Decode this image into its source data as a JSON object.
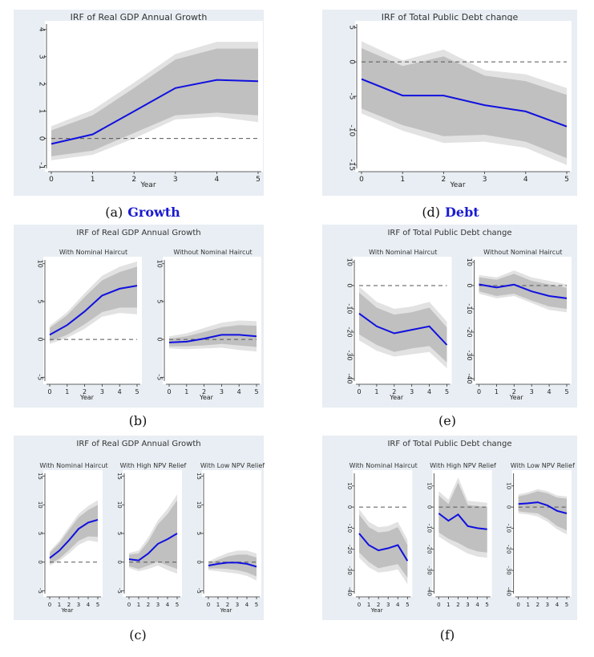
{
  "chart_data": [
    {
      "id": "a",
      "type": "line",
      "caption_label": "(a)",
      "caption_word": "Growth",
      "title": "IRF of Real GDP Annual Growth",
      "subplots": [
        {
          "subtitle": "",
          "xlabel": "Year",
          "x": [
            0,
            1,
            2,
            3,
            4,
            5
          ],
          "xticks": [
            0,
            1,
            2,
            3,
            4,
            5
          ],
          "ylim": [
            -1.1,
            4.2
          ],
          "yticks": [
            -1,
            0,
            1,
            2,
            3,
            4
          ],
          "series": [
            {
              "values": [
                -0.2,
                0.15,
                1.0,
                1.85,
                2.15,
                2.1
              ],
              "ci_inner_lower": [
                -0.65,
                -0.45,
                0.2,
                0.85,
                0.95,
                0.85
              ],
              "ci_inner_upper": [
                0.3,
                0.85,
                1.85,
                2.9,
                3.3,
                3.3
              ],
              "ci_outer_lower": [
                -0.8,
                -0.6,
                0.0,
                0.7,
                0.8,
                0.6
              ],
              "ci_outer_upper": [
                0.45,
                1.05,
                2.05,
                3.1,
                3.55,
                3.55
              ]
            }
          ]
        }
      ]
    },
    {
      "id": "d",
      "type": "line",
      "caption_label": "(d)",
      "caption_word": "Debt",
      "title": "IRF of Total Public Debt change",
      "subplots": [
        {
          "subtitle": "",
          "xlabel": "Year",
          "x": [
            0,
            1,
            2,
            3,
            4,
            5
          ],
          "xticks": [
            0,
            1,
            2,
            3,
            4,
            5
          ],
          "ylim": [
            -15.5,
            5.5
          ],
          "yticks": [
            5,
            0,
            -5,
            -10,
            -15
          ],
          "series": [
            {
              "values": [
                -2.5,
                -4.9,
                -4.9,
                -6.3,
                -7.2,
                -9.4
              ],
              "ci_inner_lower": [
                -6.8,
                -9.2,
                -10.8,
                -10.6,
                -11.6,
                -14.0
              ],
              "ci_inner_upper": [
                2.0,
                -0.6,
                0.8,
                -2.0,
                -2.8,
                -4.8
              ],
              "ci_outer_lower": [
                -7.5,
                -10.0,
                -11.8,
                -11.6,
                -12.5,
                -15.0
              ],
              "ci_outer_upper": [
                3.0,
                0.2,
                1.8,
                -1.2,
                -1.8,
                -3.8
              ]
            }
          ]
        }
      ]
    },
    {
      "id": "b",
      "type": "line",
      "caption_label": "(b)",
      "caption_word": "",
      "title": "IRF of Real GDP Annual Growth",
      "subplots": [
        {
          "subtitle": "With Nominal Haircut",
          "xlabel": "Year",
          "x": [
            0,
            1,
            2,
            3,
            4,
            5
          ],
          "xticks": [
            0,
            1,
            2,
            3,
            4,
            5
          ],
          "ylim": [
            -5.5,
            10.5
          ],
          "yticks": [
            10,
            5,
            0,
            -5
          ],
          "series": [
            {
              "values": [
                0.6,
                1.9,
                3.7,
                5.8,
                6.7,
                7.1
              ],
              "ci_inner_lower": [
                -0.3,
                0.6,
                2.0,
                3.6,
                4.2,
                4.2
              ],
              "ci_inner_upper": [
                1.5,
                3.2,
                5.6,
                7.8,
                8.9,
                9.6
              ],
              "ci_outer_lower": [
                -0.6,
                0.2,
                1.4,
                3.0,
                3.5,
                3.3
              ],
              "ci_outer_upper": [
                1.8,
                3.6,
                6.1,
                8.4,
                9.6,
                10.3
              ]
            }
          ]
        },
        {
          "subtitle": "Without Nominal Haircut",
          "xlabel": "Year",
          "x": [
            0,
            1,
            2,
            3,
            4,
            5
          ],
          "xticks": [
            0,
            1,
            2,
            3,
            4,
            5
          ],
          "ylim": [
            -5.5,
            10.5
          ],
          "yticks": [
            10,
            5,
            0,
            -5
          ],
          "series": [
            {
              "values": [
                -0.4,
                -0.3,
                0.1,
                0.6,
                0.6,
                0.4
              ],
              "ci_inner_lower": [
                -0.9,
                -0.9,
                -0.8,
                -0.6,
                -0.8,
                -1.0
              ],
              "ci_inner_upper": [
                0.1,
                0.4,
                1.0,
                1.6,
                1.9,
                1.8
              ],
              "ci_outer_lower": [
                -1.2,
                -1.3,
                -1.2,
                -1.1,
                -1.4,
                -1.6
              ],
              "ci_outer_upper": [
                0.4,
                0.8,
                1.5,
                2.2,
                2.5,
                2.4
              ]
            }
          ]
        }
      ]
    },
    {
      "id": "e",
      "type": "line",
      "caption_label": "(e)",
      "caption_word": "",
      "title": "IRF of Total Public Debt change",
      "subplots": [
        {
          "subtitle": "With Nominal Haircut",
          "xlabel": "Year",
          "x": [
            0,
            1,
            2,
            3,
            4,
            5
          ],
          "xticks": [
            0,
            1,
            2,
            3,
            4,
            5
          ],
          "ylim": [
            -41,
            11
          ],
          "yticks": [
            10,
            0,
            -10,
            -20,
            -30,
            -40
          ],
          "series": [
            {
              "values": [
                -12.0,
                -17.5,
                -20.5,
                -19.0,
                -17.5,
                -25.5
              ],
              "ci_inner_lower": [
                -21.0,
                -25.5,
                -28.5,
                -27.0,
                -26.0,
                -33.0
              ],
              "ci_inner_upper": [
                -3.0,
                -9.5,
                -12.5,
                -11.5,
                -9.5,
                -18.0
              ],
              "ci_outer_lower": [
                -23.5,
                -28.0,
                -30.5,
                -29.5,
                -28.5,
                -35.5
              ],
              "ci_outer_upper": [
                -0.5,
                -7.0,
                -10.0,
                -9.0,
                -7.0,
                -15.5
              ]
            }
          ]
        },
        {
          "subtitle": "Without Nominal Haircut",
          "xlabel": "Year",
          "x": [
            0,
            1,
            2,
            3,
            4,
            5
          ],
          "xticks": [
            0,
            1,
            2,
            3,
            4,
            5
          ],
          "ylim": [
            -41,
            11
          ],
          "yticks": [
            10,
            0,
            -10,
            -20,
            -30,
            -40
          ],
          "series": [
            {
              "values": [
                0.5,
                -0.8,
                0.4,
                -2.5,
                -4.5,
                -5.5
              ],
              "ci_inner_lower": [
                -2.5,
                -4.5,
                -3.5,
                -6.5,
                -9.0,
                -10.0
              ],
              "ci_inner_upper": [
                3.5,
                2.5,
                5.0,
                2.0,
                0.5,
                -1.0
              ],
              "ci_outer_lower": [
                -3.5,
                -5.5,
                -4.5,
                -7.5,
                -10.5,
                -11.5
              ],
              "ci_outer_upper": [
                4.5,
                3.5,
                6.5,
                3.5,
                2.0,
                0.5
              ]
            }
          ]
        }
      ]
    },
    {
      "id": "c",
      "type": "line",
      "caption_label": "(c)",
      "caption_word": "",
      "title": "IRF of Real GDP Annual Growth",
      "subplots": [
        {
          "subtitle": "With Nominal Haircut",
          "xlabel": "Year",
          "x": [
            0,
            1,
            2,
            3,
            4,
            5
          ],
          "xticks": [
            0,
            1,
            2,
            3,
            4,
            5
          ],
          "ylim": [
            -5.5,
            15.5
          ],
          "yticks": [
            15,
            10,
            5,
            0,
            -5
          ],
          "series": [
            {
              "values": [
                0.7,
                2.0,
                3.8,
                5.8,
                6.9,
                7.4
              ],
              "ci_inner_lower": [
                -0.3,
                0.6,
                2.1,
                3.7,
                4.5,
                4.4
              ],
              "ci_inner_upper": [
                1.6,
                3.3,
                5.6,
                7.8,
                9.1,
                10.0
              ],
              "ci_outer_lower": [
                -0.6,
                0.2,
                1.5,
                3.0,
                3.8,
                3.5
              ],
              "ci_outer_upper": [
                1.9,
                3.7,
                6.1,
                8.4,
                9.8,
                10.8
              ]
            }
          ]
        },
        {
          "subtitle": "With High NPV Relief",
          "xlabel": "",
          "x": [
            0,
            1,
            2,
            3,
            4,
            5
          ],
          "xticks": [
            0,
            1,
            2,
            3,
            4,
            5
          ],
          "ylim": [
            -5.5,
            15.5
          ],
          "yticks": [
            15,
            10,
            5,
            0,
            -5
          ],
          "series": [
            {
              "values": [
                0.5,
                0.3,
                1.5,
                3.2,
                4.0,
                5.0
              ],
              "ci_inner_lower": [
                -0.7,
                -1.2,
                -0.6,
                0.1,
                -0.6,
                -1.2
              ],
              "ci_inner_upper": [
                1.3,
                1.5,
                3.6,
                6.6,
                8.4,
                10.8
              ],
              "ci_outer_lower": [
                -1.0,
                -1.6,
                -1.2,
                -0.6,
                -1.4,
                -2.0
              ],
              "ci_outer_upper": [
                1.6,
                2.0,
                4.3,
                7.3,
                9.3,
                11.8
              ]
            }
          ]
        },
        {
          "subtitle": "With Low NPV Relief",
          "xlabel": "Year",
          "x": [
            0,
            1,
            2,
            3,
            4,
            5
          ],
          "xticks": [
            0,
            1,
            2,
            3,
            4,
            5
          ],
          "ylim": [
            -5.5,
            15.5
          ],
          "yticks": [
            15,
            10,
            5,
            0,
            -5
          ],
          "series": [
            {
              "values": [
                -0.6,
                -0.3,
                -0.1,
                -0.1,
                -0.3,
                -0.8
              ],
              "ci_inner_lower": [
                -1.1,
                -1.1,
                -1.2,
                -1.4,
                -1.8,
                -2.5
              ],
              "ci_inner_upper": [
                -0.2,
                0.4,
                1.0,
                1.3,
                1.3,
                0.8
              ],
              "ci_outer_lower": [
                -1.4,
                -1.6,
                -1.8,
                -2.0,
                -2.4,
                -3.2
              ],
              "ci_outer_upper": [
                0.1,
                0.9,
                1.6,
                2.0,
                2.0,
                1.5
              ]
            }
          ]
        }
      ]
    },
    {
      "id": "f",
      "type": "line",
      "caption_label": "(f)",
      "caption_word": "",
      "title": "IRF of Total Public Debt change",
      "subplots": [
        {
          "subtitle": "With Nominal Haircut",
          "xlabel": "Year",
          "x": [
            0,
            1,
            2,
            3,
            4,
            5
          ],
          "xticks": [
            0,
            1,
            2,
            3,
            4,
            5
          ],
          "ylim": [
            -41,
            16
          ],
          "yticks": [
            10,
            0,
            -10,
            -20,
            -30,
            -40
          ],
          "series": [
            {
              "values": [
                -12.5,
                -18.0,
                -20.5,
                -19.5,
                -18.0,
                -25.5
              ],
              "ci_inner_lower": [
                -21.5,
                -26.0,
                -29.0,
                -28.0,
                -27.0,
                -33.5
              ],
              "ci_inner_upper": [
                -3.5,
                -9.5,
                -12.0,
                -11.5,
                -9.5,
                -18.0
              ],
              "ci_outer_lower": [
                -24.0,
                -28.5,
                -31.0,
                -30.5,
                -29.5,
                -36.5
              ],
              "ci_outer_upper": [
                -1.0,
                -7.0,
                -9.5,
                -9.0,
                -7.0,
                -15.5
              ]
            }
          ]
        },
        {
          "subtitle": "With High NPV Relief",
          "xlabel": "",
          "x": [
            0,
            1,
            2,
            3,
            4,
            5
          ],
          "xticks": [
            0,
            1,
            2,
            3,
            4,
            5
          ],
          "ylim": [
            -41,
            16
          ],
          "yticks": [
            10,
            0,
            -10,
            -20,
            -30,
            -40
          ],
          "series": [
            {
              "values": [
                -3.0,
                -6.5,
                -3.5,
                -9.0,
                -10.0,
                -10.5
              ],
              "ci_inner_lower": [
                -12.0,
                -15.0,
                -17.0,
                -19.5,
                -21.0,
                -21.5
              ],
              "ci_inner_upper": [
                5.5,
                1.5,
                11.5,
                1.0,
                0.5,
                0.0
              ],
              "ci_outer_lower": [
                -14.0,
                -17.0,
                -19.5,
                -22.0,
                -23.5,
                -24.0
              ],
              "ci_outer_upper": [
                7.5,
                3.5,
                14.0,
                3.0,
                2.5,
                2.0
              ]
            }
          ]
        },
        {
          "subtitle": "With Low NPV Relief",
          "xlabel": "",
          "x": [
            0,
            1,
            2,
            3,
            4,
            5
          ],
          "xticks": [
            0,
            1,
            2,
            3,
            4,
            5
          ],
          "ylim": [
            -41,
            16
          ],
          "yticks": [
            10,
            0,
            -10,
            -20,
            -30,
            -40
          ],
          "series": [
            {
              "values": [
                1.5,
                1.8,
                2.3,
                0.8,
                -1.8,
                -3.0
              ],
              "ci_inner_lower": [
                -2.0,
                -2.5,
                -3.0,
                -5.5,
                -9.0,
                -11.0
              ],
              "ci_inner_upper": [
                5.0,
                6.0,
                7.5,
                6.5,
                4.5,
                4.0
              ],
              "ci_outer_lower": [
                -3.0,
                -3.5,
                -4.5,
                -7.0,
                -10.5,
                -13.0
              ],
              "ci_outer_upper": [
                6.0,
                7.0,
                8.5,
                7.5,
                5.5,
                5.0
              ]
            }
          ]
        }
      ]
    }
  ]
}
